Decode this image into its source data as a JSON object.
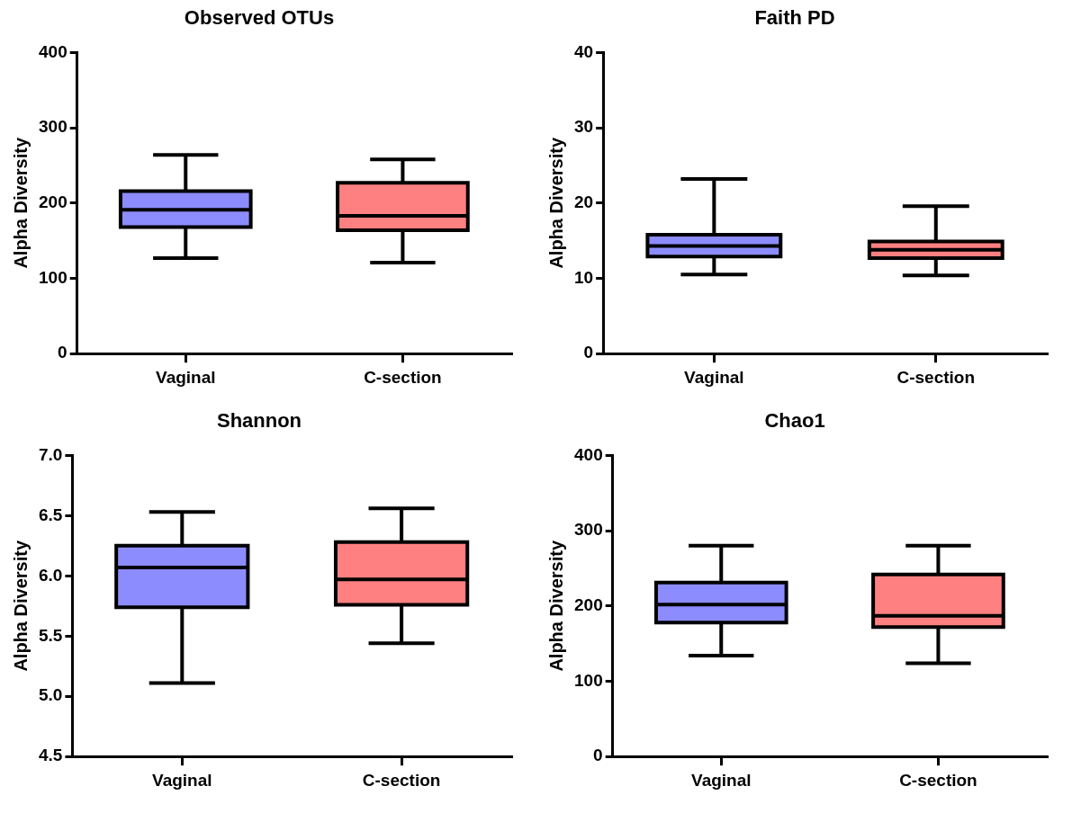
{
  "chart_data": [
    {
      "type": "box",
      "title": "Observed OTUs",
      "ylabel": "Alpha Diversity",
      "categories": [
        "Vaginal",
        "C-section"
      ],
      "colors": [
        "#8c8cff",
        "#ff8080"
      ],
      "ylim": [
        0,
        400
      ],
      "yticks": [
        0,
        100,
        200,
        300,
        400
      ],
      "boxes": [
        {
          "low": 127,
          "q1": 168,
          "median": 191,
          "q3": 216,
          "high": 264
        },
        {
          "low": 121,
          "q1": 164,
          "median": 183,
          "q3": 227,
          "high": 258
        }
      ]
    },
    {
      "type": "box",
      "title": "Faith PD",
      "ylabel": "Alpha Diversity",
      "categories": [
        "Vaginal",
        "C-section"
      ],
      "colors": [
        "#8c8cff",
        "#ff8080"
      ],
      "ylim": [
        0,
        40
      ],
      "yticks": [
        0,
        10,
        20,
        30,
        40
      ],
      "boxes": [
        {
          "low": 10.5,
          "q1": 12.9,
          "median": 14.3,
          "q3": 15.8,
          "high": 23.2
        },
        {
          "low": 10.4,
          "q1": 12.7,
          "median": 13.8,
          "q3": 14.9,
          "high": 19.6
        }
      ]
    },
    {
      "type": "box",
      "title": "Shannon",
      "ylabel": "Alpha Diversity",
      "categories": [
        "Vaginal",
        "C-section"
      ],
      "colors": [
        "#8c8cff",
        "#ff8080"
      ],
      "ylim": [
        4.5,
        7.0
      ],
      "yticks": [
        {
          "value": 4.5,
          "label": "4.5"
        },
        {
          "value": 5,
          "label": "5.0"
        },
        {
          "value": 5.5,
          "label": "5.5"
        },
        {
          "value": 6,
          "label": "6.0"
        },
        {
          "value": 6.5,
          "label": "6.5"
        },
        {
          "value": 7,
          "label": "7.0"
        }
      ],
      "boxes": [
        {
          "low": 5.11,
          "q1": 5.74,
          "median": 6.07,
          "q3": 6.25,
          "high": 6.53
        },
        {
          "low": 5.44,
          "q1": 5.76,
          "median": 5.97,
          "q3": 6.28,
          "high": 6.56
        }
      ]
    },
    {
      "type": "box",
      "title": "Chao1",
      "ylabel": "Alpha Diversity",
      "categories": [
        "Vaginal",
        "C-section"
      ],
      "colors": [
        "#8c8cff",
        "#ff8080"
      ],
      "ylim": [
        0,
        400
      ],
      "yticks": [
        0,
        100,
        200,
        300,
        400
      ],
      "boxes": [
        {
          "low": 134,
          "q1": 178,
          "median": 202,
          "q3": 231,
          "high": 280
        },
        {
          "low": 124,
          "q1": 172,
          "median": 187,
          "q3": 242,
          "high": 280
        }
      ]
    }
  ]
}
